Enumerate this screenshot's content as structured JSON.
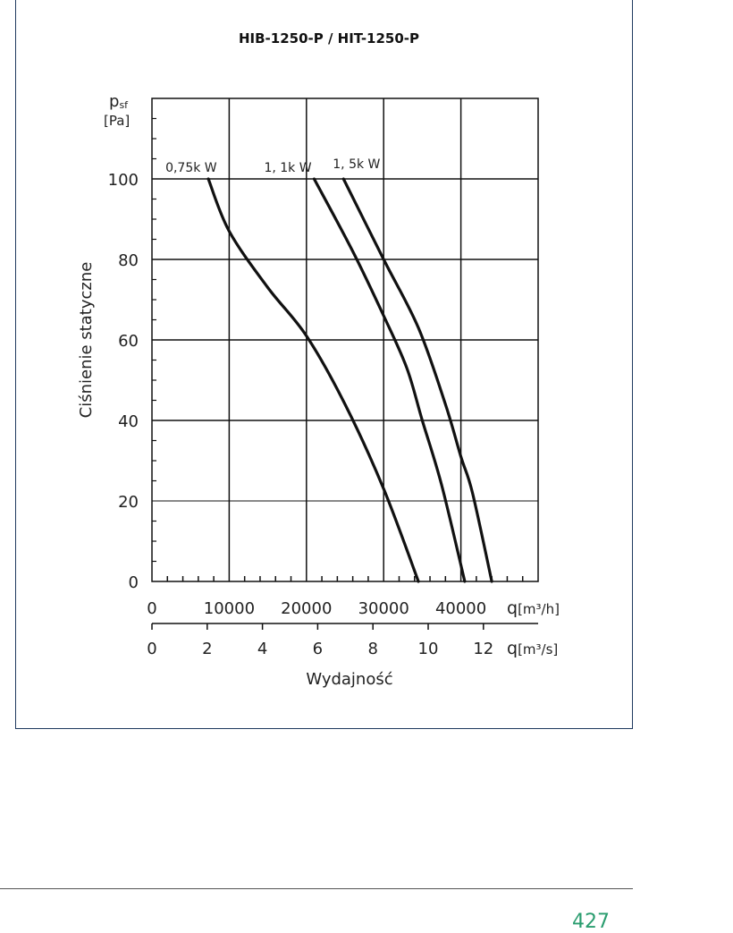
{
  "page": {
    "page_number": "427"
  },
  "chart_data": {
    "type": "line",
    "title": "HIB-1250-P / HIT-1250-P",
    "ylabel": "Ciśnienie statyczne",
    "ylabel_symbol": "p",
    "ylabel_symbol_sub": "sf",
    "ylabel_unit": "[Pa]",
    "xlabel": "Wydajność",
    "x_unit_h_symbol": "q",
    "x_unit_h_rest": "[m³/h]",
    "x_unit_s_symbol": "q",
    "x_unit_s_rest": "[m³/s]",
    "xlim": [
      0,
      50000
    ],
    "ylim": [
      0,
      120
    ],
    "grid": true,
    "x_ticks": [
      "0",
      "10000",
      "20000",
      "30000",
      "40000"
    ],
    "x_tick_values": [
      0,
      10000,
      20000,
      30000,
      40000
    ],
    "x2_ticks": [
      "0",
      "2",
      "4",
      "6",
      "8",
      "10",
      "12"
    ],
    "x2_tick_values": [
      0,
      2,
      4,
      6,
      8,
      10,
      12
    ],
    "y_ticks": [
      "0",
      "20",
      "40",
      "60",
      "80",
      "100"
    ],
    "y_tick_values": [
      0,
      20,
      40,
      60,
      80,
      100
    ],
    "series": [
      {
        "name": "0,75k W",
        "x": [
          7300,
          10000,
          15000,
          20000,
          25000,
          30000,
          34500
        ],
        "y": [
          100,
          87,
          73,
          61,
          44,
          23,
          0
        ]
      },
      {
        "name": "1, 1k W",
        "x": [
          21000,
          26000,
          30000,
          33000,
          35000,
          37500,
          40500
        ],
        "y": [
          100,
          82,
          66,
          53,
          40,
          24,
          0
        ]
      },
      {
        "name": "1, 5k W",
        "x": [
          24800,
          30000,
          34500,
          38000,
          40000,
          41500,
          44000
        ],
        "y": [
          100,
          80,
          63,
          44,
          31,
          22,
          0
        ]
      }
    ]
  }
}
